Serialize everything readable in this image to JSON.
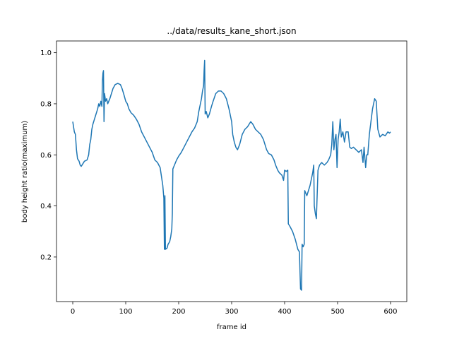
{
  "chart_data": {
    "type": "line",
    "title": "../data/results_kane_short.json",
    "x_label": "frame id",
    "y_label": "body height ratio(maximum)",
    "xlim": [
      -30.7,
      630.7
    ],
    "ylim": [
      0.0255,
      1.046
    ],
    "xticks": [
      0,
      100,
      200,
      300,
      400,
      500,
      600
    ],
    "yticks": [
      0.2,
      0.4,
      0.6,
      0.8,
      {
        "value": 1.0,
        "label": "1.0"
      }
    ],
    "series": [
      {
        "color": "#1f77b4",
        "x": [
          0,
          3,
          5,
          7,
          9,
          12,
          14,
          16,
          19,
          22,
          27,
          30,
          32,
          34,
          36,
          38,
          41,
          44,
          47,
          49,
          51,
          53,
          55,
          56,
          57,
          58,
          59,
          60,
          62,
          64,
          66,
          68,
          70,
          73,
          76,
          80,
          85,
          90,
          93,
          96,
          100,
          103,
          106,
          110,
          115,
          120,
          125,
          130,
          135,
          140,
          145,
          150,
          155,
          160,
          165,
          170,
          172,
          173,
          174,
          175,
          178,
          180,
          183,
          185,
          187,
          188,
          189,
          192,
          196,
          200,
          205,
          210,
          215,
          220,
          225,
          230,
          235,
          238,
          240,
          243,
          245,
          247,
          248,
          249,
          250,
          252,
          255,
          258,
          262,
          265,
          270,
          275,
          280,
          285,
          290,
          295,
          300,
          302,
          305,
          308,
          311,
          315,
          320,
          325,
          330,
          336,
          340,
          345,
          350,
          355,
          360,
          363,
          366,
          370,
          375,
          380,
          383,
          387,
          390,
          395,
          398,
          400,
          403,
          406,
          407,
          410,
          415,
          420,
          425,
          428,
          430,
          432,
          433,
          435,
          437,
          438,
          440,
          442,
          445,
          448,
          450,
          453,
          455,
          456,
          458,
          460,
          463,
          466,
          470,
          475,
          480,
          483,
          487,
          489,
          491,
          493,
          495,
          497,
          499,
          501,
          503,
          505,
          507,
          510,
          513,
          516,
          520,
          523,
          526,
          530,
          535,
          540,
          545,
          548,
          550,
          553,
          555,
          557,
          560,
          563,
          566,
          570,
          573,
          576,
          580,
          585,
          590,
          595,
          598,
          600
        ],
        "values": [
          0.73,
          0.69,
          0.68,
          0.62,
          0.585,
          0.575,
          0.56,
          0.555,
          0.565,
          0.575,
          0.58,
          0.6,
          0.64,
          0.66,
          0.7,
          0.72,
          0.74,
          0.76,
          0.78,
          0.8,
          0.79,
          0.81,
          0.79,
          0.89,
          0.92,
          0.93,
          0.73,
          0.84,
          0.81,
          0.82,
          0.8,
          0.81,
          0.82,
          0.84,
          0.86,
          0.875,
          0.88,
          0.875,
          0.86,
          0.84,
          0.81,
          0.8,
          0.78,
          0.765,
          0.755,
          0.74,
          0.72,
          0.69,
          0.67,
          0.65,
          0.63,
          0.61,
          0.58,
          0.57,
          0.55,
          0.48,
          0.43,
          0.23,
          0.44,
          0.23,
          0.235,
          0.25,
          0.26,
          0.28,
          0.31,
          0.37,
          0.545,
          0.56,
          0.58,
          0.595,
          0.61,
          0.63,
          0.65,
          0.67,
          0.69,
          0.705,
          0.73,
          0.77,
          0.79,
          0.82,
          0.85,
          0.87,
          0.93,
          0.97,
          0.76,
          0.77,
          0.745,
          0.76,
          0.79,
          0.81,
          0.84,
          0.85,
          0.85,
          0.84,
          0.82,
          0.78,
          0.73,
          0.68,
          0.65,
          0.63,
          0.62,
          0.64,
          0.68,
          0.7,
          0.71,
          0.73,
          0.72,
          0.7,
          0.69,
          0.68,
          0.66,
          0.64,
          0.62,
          0.605,
          0.6,
          0.58,
          0.56,
          0.54,
          0.53,
          0.52,
          0.5,
          0.54,
          0.535,
          0.54,
          0.33,
          0.32,
          0.3,
          0.27,
          0.23,
          0.22,
          0.075,
          0.07,
          0.25,
          0.24,
          0.25,
          0.46,
          0.45,
          0.44,
          0.46,
          0.48,
          0.5,
          0.53,
          0.56,
          0.4,
          0.37,
          0.35,
          0.54,
          0.56,
          0.57,
          0.56,
          0.57,
          0.58,
          0.6,
          0.64,
          0.73,
          0.62,
          0.66,
          0.68,
          0.55,
          0.66,
          0.69,
          0.74,
          0.67,
          0.69,
          0.65,
          0.69,
          0.69,
          0.63,
          0.625,
          0.63,
          0.62,
          0.61,
          0.62,
          0.57,
          0.63,
          0.55,
          0.6,
          0.6,
          0.68,
          0.73,
          0.78,
          0.82,
          0.81,
          0.7,
          0.67,
          0.68,
          0.675,
          0.69,
          0.685,
          0.69
        ]
      }
    ]
  }
}
